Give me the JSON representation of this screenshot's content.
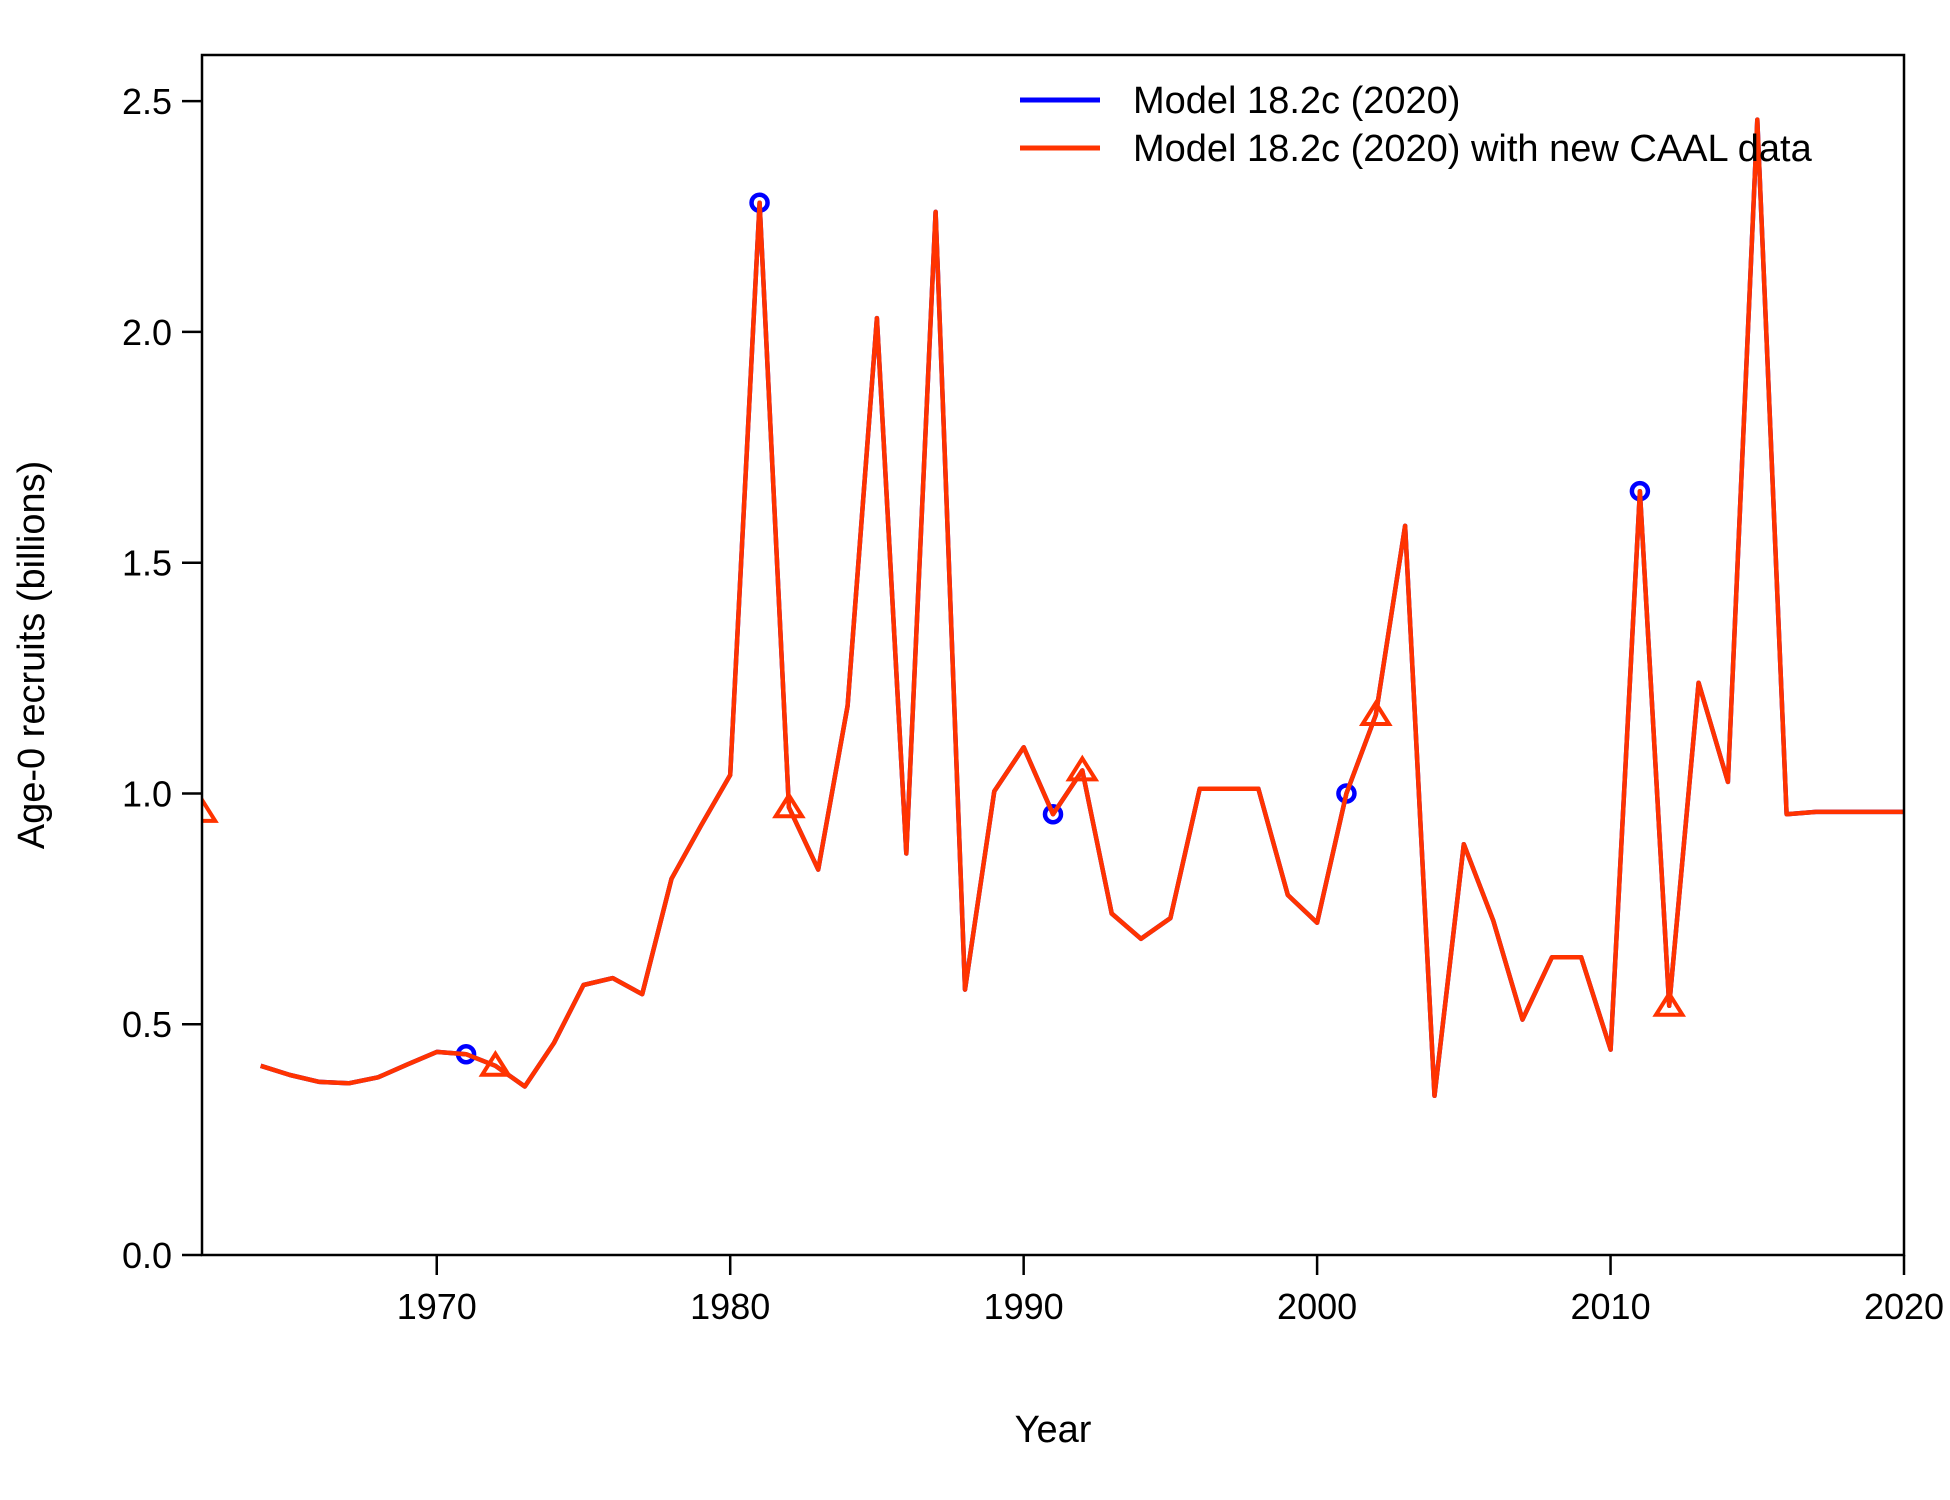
{
  "chart_data": {
    "type": "line",
    "xlabel": "Year",
    "ylabel": "Age-0 recruits (billions)",
    "xlim": [
      1962,
      2020
    ],
    "ylim": [
      0,
      2.6
    ],
    "xticks": [
      "1970",
      "1980",
      "1990",
      "2000",
      "2010",
      "2020"
    ],
    "yticks": [
      "0.0",
      "0.5",
      "1.0",
      "1.5",
      "2.0",
      "2.5"
    ],
    "legend_position": "top-right",
    "series": [
      {
        "name": "Model 18.2c (2020)",
        "color": "#0000ff",
        "marker": "circle",
        "x": [
          1964,
          1965,
          1966,
          1967,
          1968,
          1969,
          1970,
          1971,
          1972,
          1973,
          1974,
          1975,
          1976,
          1977,
          1978,
          1979,
          1980,
          1981,
          1982,
          1983,
          1984,
          1985,
          1986,
          1987,
          1988,
          1989,
          1990,
          1991,
          1992,
          1993,
          1994,
          1995,
          1996,
          1997,
          1998,
          1999,
          2000,
          2001,
          2002,
          2003,
          2004,
          2005,
          2006,
          2007,
          2008,
          2009,
          2010,
          2011,
          2012,
          2013,
          2014,
          2015,
          2016,
          2017,
          2018,
          2019,
          2020
        ],
        "y": [
          0.41,
          0.39,
          0.375,
          0.372,
          0.385,
          0.413,
          0.44,
          0.435,
          0.41,
          0.365,
          0.46,
          0.585,
          0.6,
          0.565,
          0.815,
          0.93,
          1.04,
          2.28,
          0.97,
          0.835,
          1.19,
          2.03,
          0.87,
          2.26,
          0.575,
          1.005,
          1.1,
          0.955,
          1.05,
          0.74,
          0.685,
          0.73,
          1.01,
          1.01,
          1.01,
          0.78,
          0.72,
          1.0,
          1.17,
          1.58,
          0.345,
          0.89,
          0.725,
          0.51,
          0.645,
          0.645,
          0.445,
          1.655,
          0.54,
          1.24,
          1.025,
          2.46,
          0.955,
          0.96,
          0.96,
          0.96,
          0.96
        ],
        "marker_points": [
          [
            1971,
            0.435
          ],
          [
            1981,
            2.28
          ],
          [
            1991,
            0.955
          ],
          [
            2001,
            1.0
          ],
          [
            2011,
            1.655
          ]
        ]
      },
      {
        "name": "Model 18.2c (2020) with new CAAL data",
        "color": "#ff3300",
        "marker": "triangle",
        "x": [
          1964,
          1965,
          1966,
          1967,
          1968,
          1969,
          1970,
          1971,
          1972,
          1973,
          1974,
          1975,
          1976,
          1977,
          1978,
          1979,
          1980,
          1981,
          1982,
          1983,
          1984,
          1985,
          1986,
          1987,
          1988,
          1989,
          1990,
          1991,
          1992,
          1993,
          1994,
          1995,
          1996,
          1997,
          1998,
          1999,
          2000,
          2001,
          2002,
          2003,
          2004,
          2005,
          2006,
          2007,
          2008,
          2009,
          2010,
          2011,
          2012,
          2013,
          2014,
          2015,
          2016,
          2017,
          2018,
          2019,
          2020
        ],
        "y": [
          0.41,
          0.39,
          0.375,
          0.372,
          0.385,
          0.413,
          0.44,
          0.435,
          0.41,
          0.365,
          0.46,
          0.585,
          0.6,
          0.565,
          0.815,
          0.93,
          1.04,
          2.28,
          0.97,
          0.835,
          1.19,
          2.03,
          0.87,
          2.26,
          0.575,
          1.005,
          1.1,
          0.955,
          1.05,
          0.74,
          0.685,
          0.73,
          1.01,
          1.01,
          1.01,
          0.78,
          0.72,
          1.0,
          1.17,
          1.58,
          0.345,
          0.89,
          0.725,
          0.51,
          0.645,
          0.645,
          0.445,
          1.655,
          0.54,
          1.24,
          1.025,
          2.46,
          0.955,
          0.96,
          0.96,
          0.96,
          0.96
        ],
        "marker_points": [
          [
            1962,
            0.96
          ],
          [
            1972,
            0.41
          ],
          [
            1982,
            0.97
          ],
          [
            1992,
            1.05
          ],
          [
            2002,
            1.17
          ],
          [
            2012,
            0.54
          ]
        ]
      }
    ]
  }
}
